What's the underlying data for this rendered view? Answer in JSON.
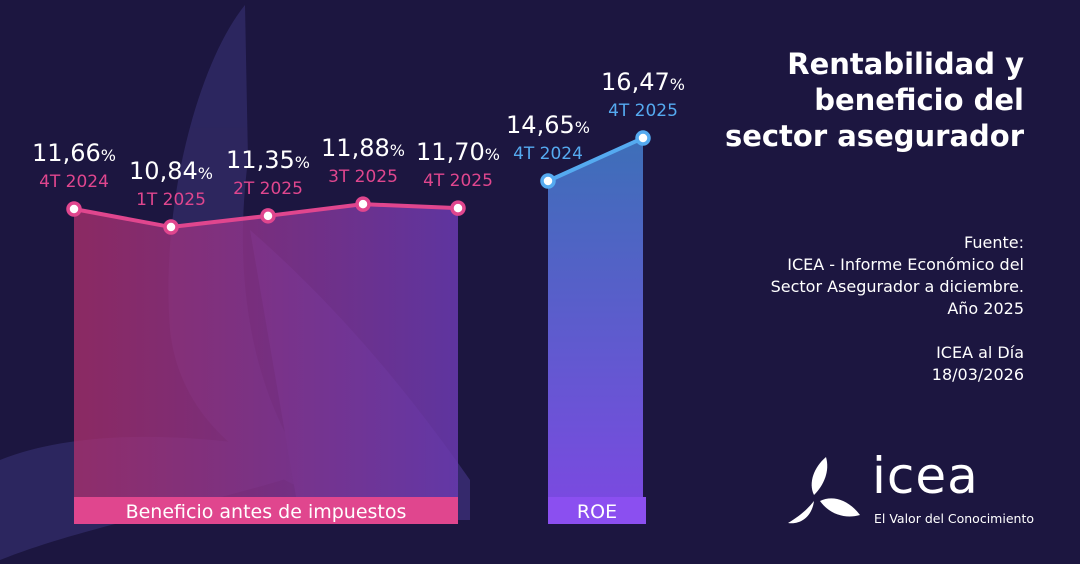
{
  "title": [
    "Rentabilidad y",
    "beneficio del",
    "sector asegurador"
  ],
  "source": {
    "label": "Fuente:",
    "lines": [
      "ICEA - Informe Económico del",
      "Sector Asegurador a diciembre.",
      "Año 2025"
    ],
    "publication": "ICEA al Día",
    "date": "18/03/2026"
  },
  "logo": {
    "word": "icea",
    "tagline": "El Valor del Conocimiento"
  },
  "colors": {
    "background": "#1c1640",
    "beneficio": "#e0468e",
    "roe": "#55aaf0",
    "roe_label": "#8b4ff0"
  },
  "chart_data": [
    {
      "type": "area",
      "name": "Beneficio antes de impuestos",
      "categories": [
        "4T 2024",
        "1T 2025",
        "2T 2025",
        "3T 2025",
        "4T 2025"
      ],
      "values": [
        11.66,
        10.84,
        11.35,
        11.88,
        11.7
      ],
      "value_labels": [
        "11,66",
        "10,84",
        "11,35",
        "11,88",
        "11,70"
      ],
      "unit": "%"
    },
    {
      "type": "area",
      "name": "ROE",
      "categories": [
        "4T 2024",
        "4T 2025"
      ],
      "values": [
        14.65,
        16.47
      ],
      "value_labels": [
        "14,65",
        "16,47"
      ],
      "unit": "%"
    }
  ]
}
